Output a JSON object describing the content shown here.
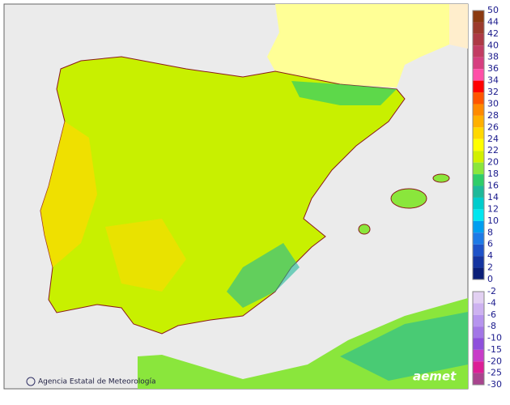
{
  "map": {
    "credit": "Agencia Estatal de Meteorología",
    "logo": "aemet"
  },
  "legend": {
    "upper": {
      "ticks": [
        50,
        44,
        42,
        40,
        38,
        36,
        34,
        32,
        30,
        28,
        26,
        24,
        22,
        20,
        18,
        16,
        14,
        12,
        10,
        8,
        6,
        4,
        2,
        0
      ],
      "colors": [
        "#8b3a10",
        "#9c3b2c",
        "#ad3a45",
        "#c23c63",
        "#d63f80",
        "#ff4fa8",
        "#ff0000",
        "#ff5500",
        "#ff8a00",
        "#ffb000",
        "#ffd800",
        "#ffff00",
        "#d2f000",
        "#8ae63c",
        "#2fcd6a",
        "#1eb99a",
        "#00cccc",
        "#00e6f0",
        "#009ef0",
        "#1e7ae6",
        "#1e52c8",
        "#1434a0",
        "#0a1e78"
      ]
    },
    "lower": {
      "ticks": [
        -2,
        -4,
        -6,
        -8,
        -10,
        -15,
        -20,
        -25,
        -30
      ],
      "colors": [
        "#e2d0f2",
        "#cdb2f0",
        "#b694ee",
        "#a276e6",
        "#8e50dc",
        "#c83cc8",
        "#dc1e96",
        "#a8448e"
      ]
    }
  }
}
